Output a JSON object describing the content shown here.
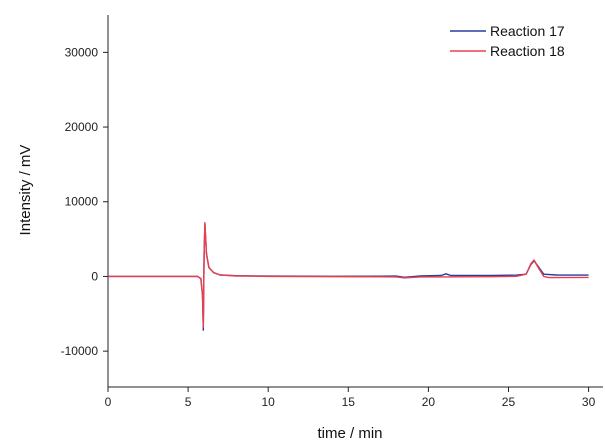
{
  "chart_data": {
    "type": "line",
    "xlabel": "time / min",
    "ylabel": "Intensity / mV",
    "xlim": [
      0,
      30.9
    ],
    "ylim": [
      -14800,
      35000
    ],
    "xticks": [
      0,
      5,
      10,
      15,
      20,
      25,
      30
    ],
    "yticks": [
      -10000,
      0,
      10000,
      20000,
      30000
    ],
    "legend_position": "top-right",
    "grid": false,
    "series": [
      {
        "name": "Reaction 17",
        "color": "#2a3b9e",
        "points": [
          [
            0,
            0
          ],
          [
            5.6,
            0
          ],
          [
            5.8,
            -300
          ],
          [
            5.9,
            -2500
          ],
          [
            5.95,
            -7200
          ],
          [
            6.0,
            3000
          ],
          [
            6.05,
            7000
          ],
          [
            6.15,
            3000
          ],
          [
            6.3,
            1200
          ],
          [
            6.6,
            500
          ],
          [
            7.0,
            200
          ],
          [
            8.0,
            100
          ],
          [
            10,
            40
          ],
          [
            14,
            20
          ],
          [
            18,
            40
          ],
          [
            18.5,
            -120
          ],
          [
            19.5,
            60
          ],
          [
            20.8,
            120
          ],
          [
            21.1,
            350
          ],
          [
            21.4,
            120
          ],
          [
            24,
            120
          ],
          [
            25.5,
            180
          ],
          [
            26.1,
            300
          ],
          [
            26.4,
            1600
          ],
          [
            26.6,
            2100
          ],
          [
            26.8,
            1500
          ],
          [
            27.2,
            300
          ],
          [
            28,
            200
          ],
          [
            30,
            180
          ]
        ]
      },
      {
        "name": "Reaction 18",
        "color": "#e8404c",
        "points": [
          [
            0,
            0
          ],
          [
            5.6,
            0
          ],
          [
            5.8,
            -300
          ],
          [
            5.9,
            -2500
          ],
          [
            5.95,
            -6800
          ],
          [
            6.0,
            3000
          ],
          [
            6.05,
            7200
          ],
          [
            6.15,
            3000
          ],
          [
            6.3,
            1200
          ],
          [
            6.6,
            500
          ],
          [
            7.0,
            200
          ],
          [
            8.0,
            60
          ],
          [
            10,
            0
          ],
          [
            14,
            -30
          ],
          [
            18,
            -60
          ],
          [
            18.5,
            -200
          ],
          [
            19.5,
            -60
          ],
          [
            21,
            -60
          ],
          [
            24,
            -40
          ],
          [
            25.5,
            20
          ],
          [
            26.1,
            300
          ],
          [
            26.4,
            1700
          ],
          [
            26.6,
            2200
          ],
          [
            26.8,
            1400
          ],
          [
            27.2,
            0
          ],
          [
            27.5,
            -150
          ],
          [
            28,
            -150
          ],
          [
            30,
            -130
          ]
        ]
      }
    ]
  }
}
